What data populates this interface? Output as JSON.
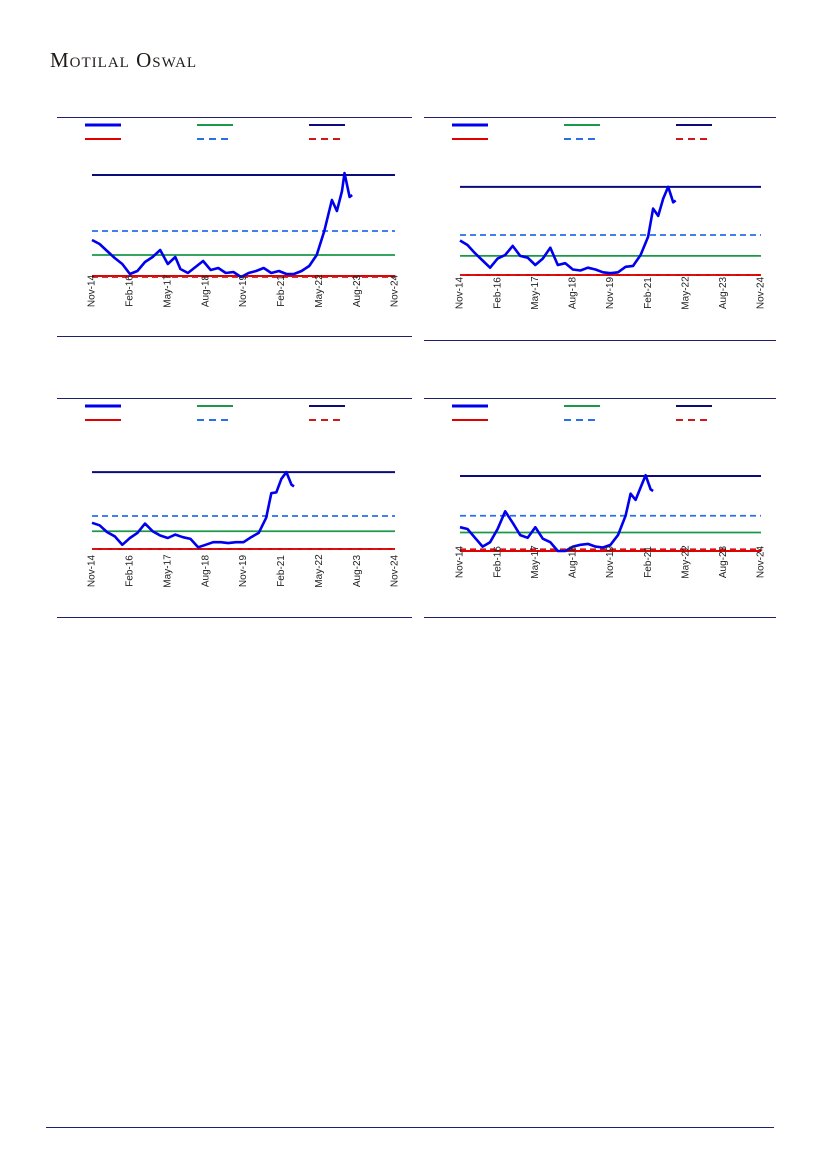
{
  "header": {
    "brand": "Motilal Oswal"
  },
  "colors": {
    "rule": "#1f1f6b",
    "series": "#0000ee",
    "avg": "#1a9a48",
    "max": "#0b0b7a",
    "min": "#e00000",
    "avg_plus_sd": "#2a6fe6",
    "avg_minus_sd": "#d01818"
  },
  "chart_data": [
    {
      "type": "line",
      "x_ticks": [
        "Nov-14",
        "Feb-16",
        "May-17",
        "Aug-18",
        "Nov-19",
        "Feb-21",
        "May-22",
        "Aug-23",
        "Nov-24"
      ],
      "x_range": [
        0,
        120
      ],
      "ylim": [
        0,
        110
      ],
      "legend": [
        "",
        "",
        "",
        "",
        "",
        ""
      ],
      "reference_lines": {
        "max": 102,
        "avg": 22,
        "min": 1,
        "avg_plus_sd": 46,
        "avg_minus_sd": 0
      },
      "series": [
        {
          "points": [
            [
              0,
              37
            ],
            [
              3,
              33
            ],
            [
              6,
              26
            ],
            [
              9,
              19
            ],
            [
              12,
              13
            ],
            [
              15,
              3
            ],
            [
              18,
              6
            ],
            [
              21,
              15
            ],
            [
              24,
              20
            ],
            [
              27,
              27
            ],
            [
              30,
              13
            ],
            [
              33,
              20
            ],
            [
              35,
              8
            ],
            [
              38,
              4
            ],
            [
              41,
              10
            ],
            [
              44,
              16
            ],
            [
              47,
              7
            ],
            [
              50,
              9
            ],
            [
              53,
              4
            ],
            [
              56,
              5
            ],
            [
              59,
              0
            ],
            [
              62,
              4
            ],
            [
              65,
              6
            ],
            [
              68,
              9
            ],
            [
              71,
              4
            ],
            [
              74,
              6
            ],
            [
              77,
              3
            ],
            [
              80,
              3
            ],
            [
              83,
              6
            ],
            [
              86,
              11
            ],
            [
              89,
              22
            ],
            [
              92,
              46
            ],
            [
              95,
              77
            ],
            [
              97,
              66
            ],
            [
              99,
              86
            ],
            [
              100,
              104
            ],
            [
              102,
              80
            ],
            [
              103,
              82
            ]
          ]
        }
      ]
    },
    {
      "type": "line",
      "x_ticks": [
        "Nov-14",
        "Feb-16",
        "May-17",
        "Aug-18",
        "Nov-19",
        "Feb-21",
        "May-22",
        "Aug-23",
        "Nov-24"
      ],
      "x_range": [
        0,
        120
      ],
      "ylim": [
        0,
        110
      ],
      "legend": [
        "",
        "",
        "",
        "",
        "",
        ""
      ],
      "reference_lines": {
        "max": 97,
        "avg": 21,
        "min": 0,
        "avg_plus_sd": 44,
        "avg_minus_sd": 0
      },
      "series": [
        {
          "points": [
            [
              0,
              38
            ],
            [
              3,
              33
            ],
            [
              6,
              24
            ],
            [
              9,
              16
            ],
            [
              12,
              8
            ],
            [
              15,
              18
            ],
            [
              18,
              22
            ],
            [
              21,
              32
            ],
            [
              24,
              21
            ],
            [
              27,
              19
            ],
            [
              30,
              11
            ],
            [
              33,
              18
            ],
            [
              36,
              30
            ],
            [
              39,
              11
            ],
            [
              42,
              13
            ],
            [
              45,
              6
            ],
            [
              48,
              5
            ],
            [
              51,
              8
            ],
            [
              54,
              6
            ],
            [
              57,
              3
            ],
            [
              60,
              2
            ],
            [
              63,
              3
            ],
            [
              66,
              9
            ],
            [
              69,
              10
            ],
            [
              72,
              22
            ],
            [
              75,
              42
            ],
            [
              77,
              73
            ],
            [
              79,
              65
            ],
            [
              81,
              84
            ],
            [
              83,
              97
            ],
            [
              85,
              80
            ],
            [
              86,
              82
            ]
          ]
        }
      ]
    },
    {
      "type": "line",
      "x_ticks": [
        "Nov-14",
        "Feb-16",
        "May-17",
        "Aug-18",
        "Nov-19",
        "Feb-21",
        "May-22",
        "Aug-23",
        "Nov-24"
      ],
      "x_range": [
        0,
        120
      ],
      "ylim": [
        0,
        110
      ],
      "legend": [
        "",
        "",
        "",
        "",
        "",
        ""
      ],
      "reference_lines": {
        "max": 91,
        "avg": 21,
        "min": 0,
        "avg_plus_sd": 39,
        "avg_minus_sd": 0
      },
      "series": [
        {
          "points": [
            [
              0,
              31
            ],
            [
              3,
              28
            ],
            [
              6,
              20
            ],
            [
              9,
              15
            ],
            [
              12,
              5
            ],
            [
              15,
              13
            ],
            [
              18,
              19
            ],
            [
              21,
              30
            ],
            [
              24,
              21
            ],
            [
              27,
              16
            ],
            [
              30,
              13
            ],
            [
              33,
              17
            ],
            [
              36,
              14
            ],
            [
              39,
              12
            ],
            [
              42,
              2
            ],
            [
              45,
              5
            ],
            [
              48,
              8
            ],
            [
              51,
              8
            ],
            [
              54,
              7
            ],
            [
              57,
              8
            ],
            [
              60,
              8
            ],
            [
              63,
              14
            ],
            [
              66,
              19
            ],
            [
              69,
              37
            ],
            [
              71,
              66
            ],
            [
              73,
              67
            ],
            [
              75,
              83
            ],
            [
              77,
              91
            ],
            [
              79,
              76
            ],
            [
              80,
              74
            ]
          ]
        }
      ]
    },
    {
      "type": "line",
      "x_ticks": [
        "Nov-14",
        "Feb-16",
        "May-17",
        "Aug-18",
        "Nov-19",
        "Feb-21",
        "May-22",
        "Aug-23",
        "Nov-24"
      ],
      "x_range": [
        0,
        120
      ],
      "ylim": [
        0,
        110
      ],
      "legend": [
        "",
        "",
        "",
        "",
        "",
        ""
      ],
      "reference_lines": {
        "max": 85,
        "avg": 21,
        "min": 0,
        "avg_plus_sd": 40,
        "avg_minus_sd": 2
      },
      "series": [
        {
          "points": [
            [
              0,
              27
            ],
            [
              3,
              25
            ],
            [
              6,
              15
            ],
            [
              9,
              5
            ],
            [
              12,
              10
            ],
            [
              15,
              25
            ],
            [
              18,
              45
            ],
            [
              21,
              32
            ],
            [
              24,
              18
            ],
            [
              27,
              15
            ],
            [
              30,
              27
            ],
            [
              33,
              14
            ],
            [
              36,
              10
            ],
            [
              39,
              0
            ],
            [
              42,
              0
            ],
            [
              45,
              5
            ],
            [
              48,
              7
            ],
            [
              51,
              8
            ],
            [
              54,
              5
            ],
            [
              57,
              4
            ],
            [
              60,
              7
            ],
            [
              63,
              18
            ],
            [
              66,
              40
            ],
            [
              68,
              65
            ],
            [
              70,
              58
            ],
            [
              72,
              72
            ],
            [
              74,
              86
            ],
            [
              76,
              70
            ],
            [
              77,
              68
            ]
          ]
        }
      ]
    }
  ]
}
